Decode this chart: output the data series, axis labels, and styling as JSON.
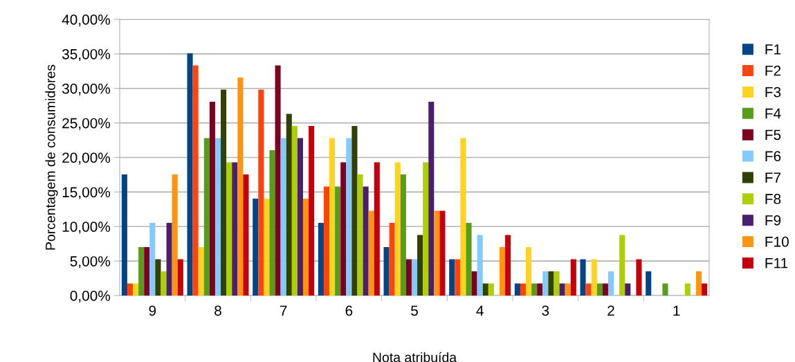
{
  "chart_data": {
    "type": "bar",
    "xlabel": "Nota atribuída",
    "ylabel": "Porcentagem de consumidores",
    "categories": [
      "9",
      "8",
      "7",
      "6",
      "5",
      "4",
      "3",
      "2",
      "1"
    ],
    "series": [
      {
        "name": "F1",
        "color": "#004586",
        "values": [
          17.54,
          35.09,
          14.04,
          10.53,
          7.02,
          5.26,
          1.75,
          5.26,
          3.51
        ]
      },
      {
        "name": "F2",
        "color": "#ff420e",
        "values": [
          1.75,
          33.33,
          29.82,
          15.79,
          10.53,
          5.26,
          1.75,
          1.75,
          0
        ]
      },
      {
        "name": "F3",
        "color": "#ffd320",
        "values": [
          1.75,
          7.02,
          14.04,
          22.81,
          19.3,
          22.81,
          7.02,
          5.26,
          0
        ]
      },
      {
        "name": "F4",
        "color": "#579d1c",
        "values": [
          7.02,
          22.81,
          21.05,
          15.79,
          17.54,
          10.53,
          1.75,
          1.75,
          1.75
        ]
      },
      {
        "name": "F5",
        "color": "#7e0021",
        "values": [
          7.02,
          28.07,
          33.33,
          19.3,
          5.26,
          3.51,
          1.75,
          1.75,
          0
        ]
      },
      {
        "name": "F6",
        "color": "#83caff",
        "values": [
          10.53,
          22.81,
          22.81,
          22.81,
          5.26,
          8.77,
          3.51,
          3.51,
          0
        ]
      },
      {
        "name": "F7",
        "color": "#314004",
        "values": [
          5.26,
          29.82,
          26.32,
          24.56,
          8.77,
          1.75,
          3.51,
          0,
          0
        ]
      },
      {
        "name": "F8",
        "color": "#aecf00",
        "values": [
          3.51,
          19.3,
          24.56,
          17.54,
          19.3,
          1.75,
          3.51,
          8.77,
          1.75
        ]
      },
      {
        "name": "F9",
        "color": "#4b1f6f",
        "values": [
          10.53,
          19.3,
          22.81,
          15.79,
          28.07,
          0,
          1.75,
          1.75,
          0
        ]
      },
      {
        "name": "F10",
        "color": "#ff950e",
        "values": [
          17.54,
          31.58,
          14.04,
          12.28,
          12.28,
          7.02,
          1.75,
          0,
          3.51
        ]
      },
      {
        "name": "F11",
        "color": "#c5000b",
        "values": [
          5.26,
          17.54,
          24.56,
          19.3,
          12.28,
          8.77,
          5.26,
          5.26,
          1.75
        ]
      }
    ],
    "ylim": [
      0,
      40
    ],
    "yticks": [
      {
        "value": 0,
        "label": "0,00%"
      },
      {
        "value": 5,
        "label": "5,00%"
      },
      {
        "value": 10,
        "label": "10,00%"
      },
      {
        "value": 15,
        "label": "15,00%"
      },
      {
        "value": 20,
        "label": "20,00%"
      },
      {
        "value": 25,
        "label": "25,00%"
      },
      {
        "value": 30,
        "label": "30,00%"
      },
      {
        "value": 35,
        "label": "35,00%"
      },
      {
        "value": 40,
        "label": "40,00%"
      }
    ],
    "grid": "y",
    "legend": "right"
  }
}
